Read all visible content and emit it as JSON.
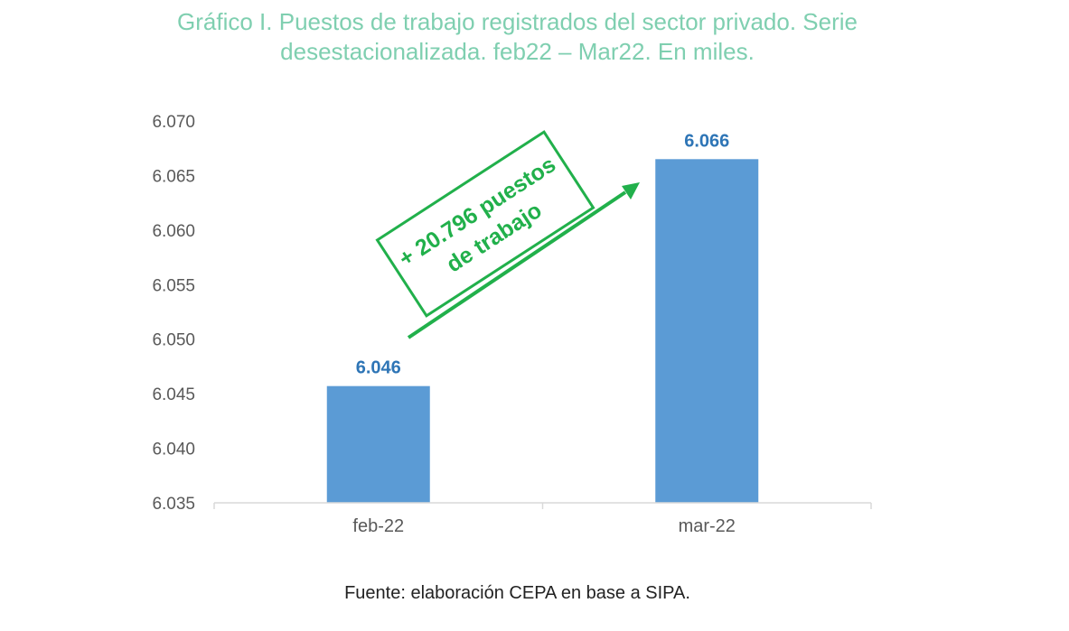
{
  "title_lines": [
    "Gráfico I. Puestos de trabajo registrados del sector privado. Serie",
    "desestacionalizada. feb22 – Mar22. En miles."
  ],
  "source": "Fuente: elaboración CEPA en base a SIPA.",
  "annotation": {
    "line1": "+ 20.796 puestos",
    "line2": "de trabajo",
    "color": "#21b04b"
  },
  "colors": {
    "title": "#7fcfb0",
    "bar": "#5b9bd5",
    "data_label": "#2e75b6",
    "axis_text": "#595959",
    "axis_line": "#d9d9d9"
  },
  "chart_data": {
    "type": "bar",
    "title": "Gráfico I. Puestos de trabajo registrados del sector privado. Serie desestacionalizada. feb22 – Mar22. En miles.",
    "categories": [
      "feb-22",
      "mar-22"
    ],
    "values": [
      6045.7,
      6066.5
    ],
    "data_labels": [
      "6.046",
      "6.066"
    ],
    "ylim": [
      6035,
      6070
    ],
    "yticks": [
      6035,
      6040,
      6045,
      6050,
      6055,
      6060,
      6065,
      6070
    ],
    "ytick_labels": [
      "6.035",
      "6.040",
      "6.045",
      "6.050",
      "6.055",
      "6.060",
      "6.065",
      "6.070"
    ],
    "grid": false,
    "legend": "none"
  }
}
